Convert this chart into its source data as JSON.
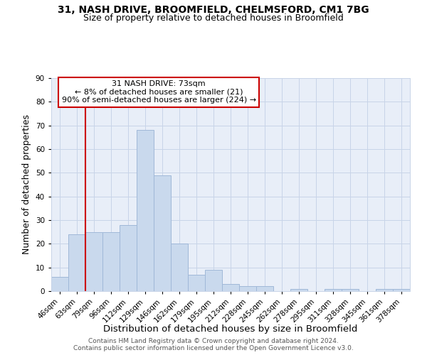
{
  "title1": "31, NASH DRIVE, BROOMFIELD, CHELMSFORD, CM1 7BG",
  "title2": "Size of property relative to detached houses in Broomfield",
  "xlabel": "Distribution of detached houses by size in Broomfield",
  "ylabel": "Number of detached properties",
  "footer1": "Contains HM Land Registry data © Crown copyright and database right 2024.",
  "footer2": "Contains public sector information licensed under the Open Government Licence v3.0.",
  "annotation_line1": "31 NASH DRIVE: 73sqm",
  "annotation_line2": "← 8% of detached houses are smaller (21)",
  "annotation_line3": "90% of semi-detached houses are larger (224) →",
  "bar_labels": [
    "46sqm",
    "63sqm",
    "79sqm",
    "96sqm",
    "112sqm",
    "129sqm",
    "146sqm",
    "162sqm",
    "179sqm",
    "195sqm",
    "212sqm",
    "228sqm",
    "245sqm",
    "262sqm",
    "278sqm",
    "295sqm",
    "311sqm",
    "328sqm",
    "345sqm",
    "361sqm",
    "378sqm"
  ],
  "bar_values": [
    6,
    24,
    25,
    25,
    28,
    68,
    49,
    20,
    7,
    9,
    3,
    2,
    2,
    0,
    1,
    0,
    1,
    1,
    0,
    1,
    1
  ],
  "bar_color": "#c9d9ed",
  "bar_edge_color": "#a0b8d8",
  "red_line_x": 1.5,
  "ylim": [
    0,
    90
  ],
  "yticks": [
    0,
    10,
    20,
    30,
    40,
    50,
    60,
    70,
    80,
    90
  ],
  "plot_bg_color": "#e8eef8",
  "bg_color": "#ffffff",
  "grid_color": "#c8d4e8",
  "annotation_box_color": "#ffffff",
  "annotation_box_edge": "#cc0000",
  "red_line_color": "#cc0000",
  "title_fontsize": 10,
  "subtitle_fontsize": 9,
  "axis_label_fontsize": 9,
  "tick_fontsize": 7.5,
  "annotation_fontsize": 8,
  "footer_fontsize": 6.5
}
